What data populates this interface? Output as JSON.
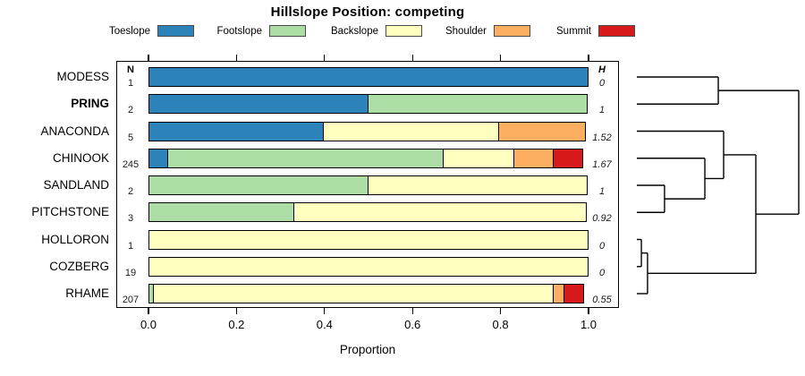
{
  "title": "Hillslope Position: competing",
  "legend": {
    "items": [
      {
        "label": "Toeslope",
        "color": "#2B83BA"
      },
      {
        "label": "Footslope",
        "color": "#ABDDA4"
      },
      {
        "label": "Backslope",
        "color": "#FFFFBF"
      },
      {
        "label": "Shoulder",
        "color": "#FDAE61"
      },
      {
        "label": "Summit",
        "color": "#D7191C"
      }
    ]
  },
  "columns": {
    "n_header": "N",
    "h_header": "H"
  },
  "axis": {
    "label": "Proportion",
    "ticks": [
      "0.0",
      "0.2",
      "0.4",
      "0.6",
      "0.8",
      "1.0"
    ],
    "tick_values": [
      0,
      0.2,
      0.4,
      0.6,
      0.8,
      1.0
    ]
  },
  "chart_data": {
    "type": "bar",
    "stacked": true,
    "orientation": "horizontal",
    "title": "Hillslope Position: competing",
    "xlabel": "Proportion",
    "xlim": [
      0,
      1
    ],
    "grid": false,
    "legend_position": "top",
    "categories": [
      "MODESS",
      "PRING",
      "ANACONDA",
      "CHINOOK",
      "SANDLAND",
      "PITCHSTONE",
      "HOLLORON",
      "COZBERG",
      "RHAME"
    ],
    "emphasized_category": "PRING",
    "series": [
      {
        "name": "Toeslope",
        "color": "#2B83BA",
        "values": [
          1.0,
          0.5,
          0.4,
          0.045,
          0,
          0,
          0,
          0,
          0
        ]
      },
      {
        "name": "Footslope",
        "color": "#ABDDA4",
        "values": [
          0,
          0.5,
          0,
          0.63,
          0.5,
          0.333,
          0,
          0,
          0.013
        ]
      },
      {
        "name": "Backslope",
        "color": "#FFFFBF",
        "values": [
          0,
          0,
          0.4,
          0.164,
          0.5,
          0.667,
          1.0,
          1.0,
          0.912
        ]
      },
      {
        "name": "Shoulder",
        "color": "#FDAE61",
        "values": [
          0,
          0,
          0.2,
          0.092,
          0,
          0,
          0,
          0,
          0.028
        ]
      },
      {
        "name": "Summit",
        "color": "#D7191C",
        "values": [
          0,
          0,
          0,
          0.069,
          0,
          0,
          0,
          0,
          0.047
        ]
      }
    ],
    "n_values": [
      "1",
      "2",
      "5",
      "245",
      "2",
      "3",
      "1",
      "19",
      "207"
    ],
    "h_values": [
      "0",
      "1",
      "1.52",
      "1.67",
      "1",
      "0.92",
      "0",
      "0",
      "0.55"
    ],
    "dendrogram": {
      "note": "x: 0=leaf tips, 1=root; y in row-index units (0=MODESS ... 8=RHAME)",
      "segments": [
        [
          0,
          0,
          0.503,
          0
        ],
        [
          0,
          1,
          0.503,
          1
        ],
        [
          0.503,
          0,
          0.503,
          1
        ],
        [
          0.503,
          0.5,
          1.0,
          0.5
        ],
        [
          0,
          2,
          0.536,
          2
        ],
        [
          0,
          3,
          0.42,
          3
        ],
        [
          0,
          4,
          0.171,
          4
        ],
        [
          0,
          5,
          0.171,
          5
        ],
        [
          0.171,
          4,
          0.171,
          5
        ],
        [
          0.171,
          4.5,
          0.42,
          4.5
        ],
        [
          0.42,
          3,
          0.42,
          4.5
        ],
        [
          0.42,
          3.75,
          0.536,
          3.75
        ],
        [
          0.536,
          2,
          0.536,
          3.75
        ],
        [
          0.536,
          2.875,
          0.735,
          2.875
        ],
        [
          0,
          6,
          0.028,
          6
        ],
        [
          0,
          7,
          0.028,
          7
        ],
        [
          0.028,
          6,
          0.028,
          7
        ],
        [
          0.028,
          6.5,
          0.066,
          6.5
        ],
        [
          0,
          8,
          0.066,
          8
        ],
        [
          0.066,
          6.5,
          0.066,
          8
        ],
        [
          0.066,
          7.25,
          0.735,
          7.25
        ],
        [
          0.735,
          2.875,
          0.735,
          7.25
        ],
        [
          0.735,
          5.0625,
          1.0,
          5.0625
        ],
        [
          1.0,
          0.5,
          1.0,
          5.0625
        ]
      ]
    }
  }
}
